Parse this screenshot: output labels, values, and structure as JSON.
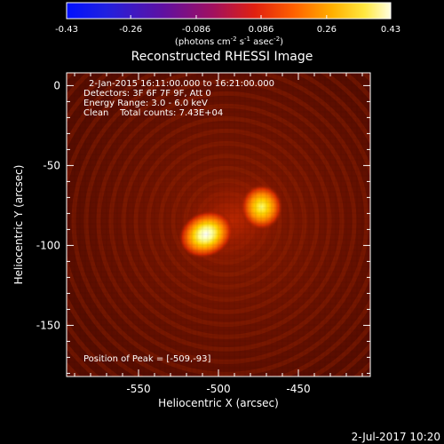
{
  "colorbar": {
    "tick_labels": [
      "-0.43",
      "-0.26",
      "-0.086",
      "0.086",
      "0.26",
      "0.43"
    ],
    "unit_base": "(photons cm",
    "unit_exp1": "-2",
    "unit_mid1": " s",
    "unit_exp2": "-1",
    "unit_mid2": " asec",
    "unit_exp3": "-2",
    "unit_end": ")",
    "min": -0.43,
    "max": 0.43,
    "colormap": "rhessi-fire: blue to purple to red to orange to yellow to white"
  },
  "plot": {
    "title": "Reconstructed RHESSI Image",
    "info_lines": [
      "2-Jan-2015 16:11:00.000 to 16:21:00.000",
      "Detectors: 3F 6F 7F 9F, Att 0",
      "Energy Range: 3.0 - 6.0 keV",
      "Clean    Total counts: 7.43E+04"
    ],
    "peak_label": "Position of Peak = [-509,-93]",
    "x_axis_label": "Heliocentric X (arcsec)",
    "y_axis_label": "Heliocentric Y (arcsec)",
    "x_tick_labels": [
      "-550",
      "-500",
      "-450"
    ],
    "y_tick_labels": [
      "0",
      "-50",
      "-100",
      "-150"
    ],
    "footer_date": "2-Jul-2017 10:20"
  },
  "chart_data": {
    "type": "heatmap",
    "title": "Reconstructed RHESSI Image",
    "xlabel": "Heliocentric X (arcsec)",
    "ylabel": "Heliocentric Y (arcsec)",
    "xlim": [
      -595,
      -405
    ],
    "ylim": [
      -182,
      8
    ],
    "x_ticks": [
      -550,
      -500,
      -450
    ],
    "y_ticks": [
      0,
      -50,
      -100,
      -150
    ],
    "color_range": [
      -0.43,
      0.43
    ],
    "sources": [
      {
        "x": -509,
        "y": -93,
        "relative_intensity": 1.0,
        "label": "peak"
      },
      {
        "x": -473,
        "y": -76,
        "relative_intensity": 0.8
      }
    ],
    "peak_position": [
      -509,
      -93
    ]
  }
}
